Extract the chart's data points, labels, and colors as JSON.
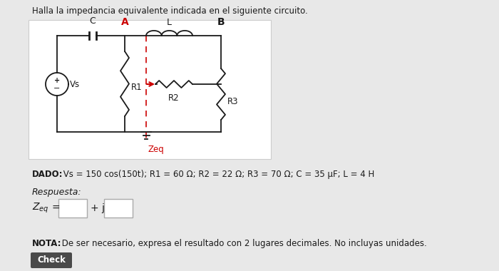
{
  "title": "Halla la impedancia equivalente indicada en el siguiente circuito.",
  "dado_bold": "DADO:",
  "dado_rest": " Vs = 150 cos(150t); R1 = 60 Ω; R2 = 22 Ω; R3 = 70 Ω; C = 35 μF; L = 4 H",
  "respuesta_text": "Respuesta:",
  "check_text": "Check",
  "nota_bold": "NOTA:",
  "nota_rest": " De ser necesario, expresa el resultado con 2 lugares decimales. No incluyas unidades.",
  "plus_j": "+ j",
  "bg_color": "#e8e8e8",
  "white": "#ffffff",
  "red_color": "#cc0000",
  "black_color": "#1a1a1a",
  "check_bg": "#4a4a4a",
  "check_fg": "#ffffff",
  "box_border": "#aaaaaa",
  "node_A": "A",
  "node_B": "B",
  "node_C": "C",
  "node_L": "L",
  "label_R1": "R1",
  "label_R2": "R2",
  "label_R3": "R3",
  "label_Vs": "Vs",
  "label_Zeq": "Zeq"
}
